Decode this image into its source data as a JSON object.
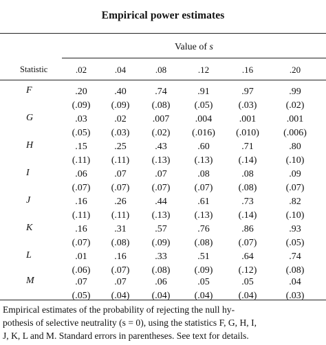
{
  "title": "Empirical power estimates",
  "header": {
    "value_of_label": "Value of",
    "s_symbol": "s",
    "statistic_label": "Statistic",
    "columns": [
      ".02",
      ".04",
      ".08",
      ".12",
      ".16",
      ".20"
    ]
  },
  "rows": [
    {
      "label": "F",
      "est": [
        ".20",
        ".40",
        ".74",
        ".91",
        ".97",
        ".99"
      ],
      "se": [
        "(.09)",
        "(.09)",
        "(.08)",
        "(.05)",
        "(.03)",
        "(.02)"
      ]
    },
    {
      "label": "G",
      "est": [
        ".03",
        ".02",
        ".007",
        ".004",
        ".001",
        ".001"
      ],
      "se": [
        "(.05)",
        "(.03)",
        "(.02)",
        "(.016)",
        "(.010)",
        "(.006)"
      ]
    },
    {
      "label": "H",
      "est": [
        ".15",
        ".25",
        ".43",
        ".60",
        ".71",
        ".80"
      ],
      "se": [
        "(.11)",
        "(.11)",
        "(.13)",
        "(.13)",
        "(.14)",
        "(.10)"
      ]
    },
    {
      "label": "I",
      "est": [
        ".06",
        ".07",
        ".07",
        ".08",
        ".08",
        ".09"
      ],
      "se": [
        "(.07)",
        "(.07)",
        "(.07)",
        "(.07)",
        "(.08)",
        "(.07)"
      ]
    },
    {
      "label": "J",
      "est": [
        ".16",
        ".26",
        ".44",
        ".61",
        ".73",
        ".82"
      ],
      "se": [
        "(.11)",
        "(.11)",
        "(.13)",
        "(.13)",
        "(.14)",
        "(.10)"
      ]
    },
    {
      "label": "K",
      "est": [
        ".16",
        ".31",
        ".57",
        ".76",
        ".86",
        ".93"
      ],
      "se": [
        "(.07)",
        "(.08)",
        "(.09)",
        "(.08)",
        "(.07)",
        "(.05)"
      ]
    },
    {
      "label": "L",
      "est": [
        ".01",
        ".16",
        ".33",
        ".51",
        ".64",
        ".74"
      ],
      "se": [
        "(.06)",
        "(.07)",
        "(.08)",
        "(.09)",
        "(.12)",
        "(.08)"
      ]
    },
    {
      "label": "M",
      "est": [
        ".07",
        ".07",
        ".06",
        ".05",
        ".05",
        ".04"
      ],
      "se": [
        "(.05)",
        "(.04)",
        "(.04)",
        "(.04)",
        "(.04)",
        "(.03)"
      ]
    }
  ],
  "caption": {
    "line1": "Empirical estimates of the probability of rejecting the null hy-",
    "line2": "pothesis of selective neutrality (s = 0), using the statistics F, G, H, I,",
    "line3": "J, K, L and M. Standard errors in parentheses. See text for details."
  }
}
